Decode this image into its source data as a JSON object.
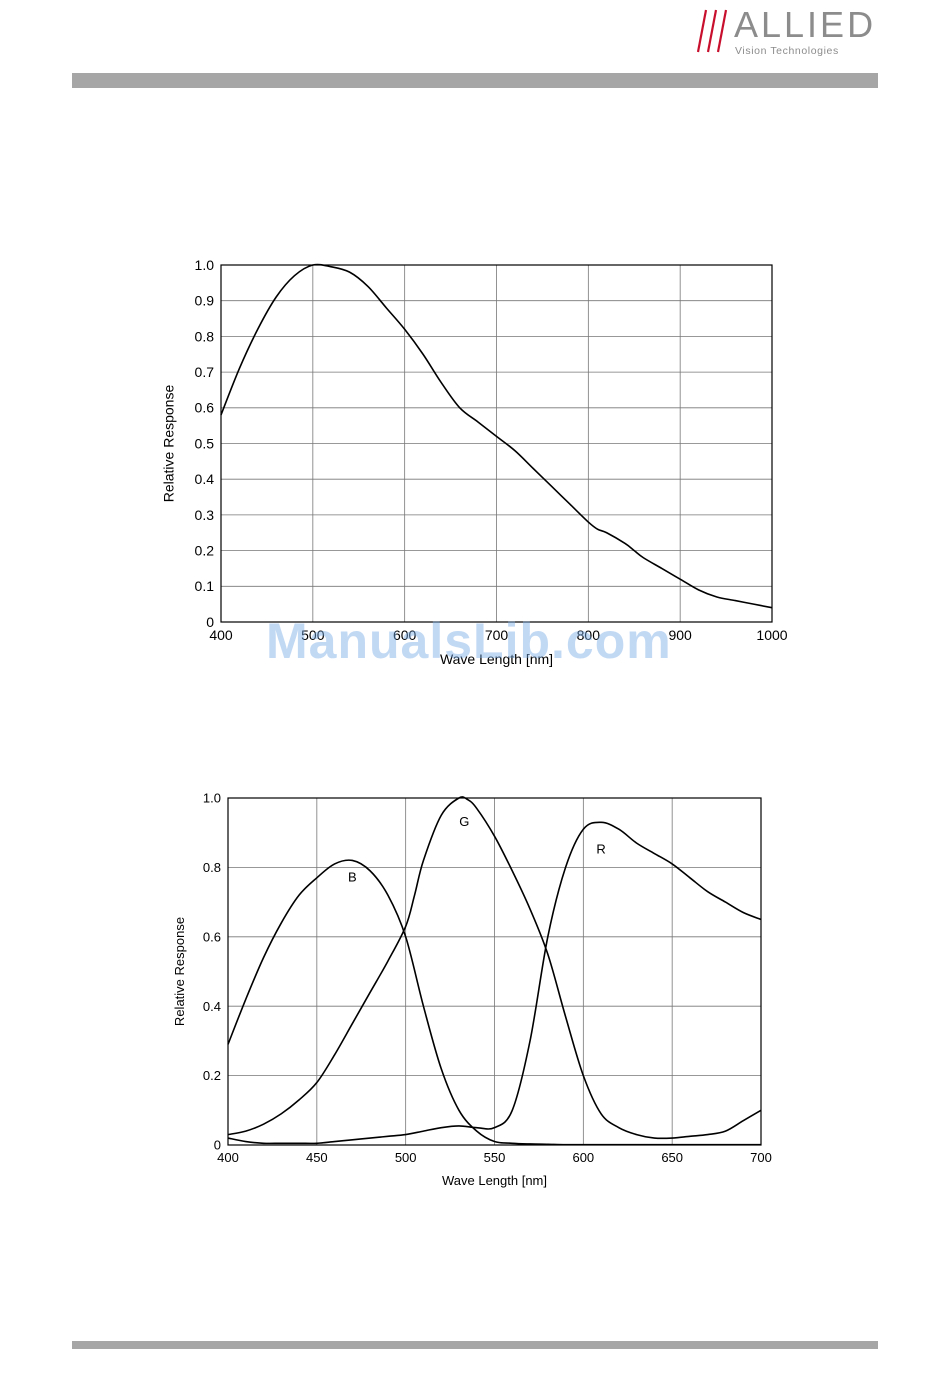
{
  "header": {
    "logo_name": "ALLIED",
    "logo_tagline": "Vision Technologies"
  },
  "colors": {
    "logo_red": "#c8102e",
    "logo_gray": "#8c8c8c",
    "bar_gray": "#a6a6a6",
    "watermark": "#78aae6"
  },
  "watermark": "ManualsLib.com",
  "chart_data": [
    {
      "type": "line",
      "title": "",
      "xlabel": "Wave Length [nm]",
      "ylabel": "Relative Response",
      "xlim": [
        400,
        1000
      ],
      "ylim": [
        0,
        1.0
      ],
      "x_ticks": [
        "400",
        "500",
        "600",
        "700",
        "800",
        "900",
        "1000"
      ],
      "y_ticks": [
        "0",
        "0.1",
        "0.2",
        "0.3",
        "0.4",
        "0.5",
        "0.6",
        "0.7",
        "0.8",
        "0.9",
        "1.0"
      ],
      "grid": true,
      "series": [
        {
          "x": [
            400,
            420,
            440,
            460,
            480,
            500,
            520,
            540,
            560,
            580,
            600,
            620,
            640,
            660,
            680,
            700,
            720,
            740,
            760,
            780,
            800,
            810,
            820,
            840,
            850,
            860,
            880,
            900,
            920,
            940,
            960,
            980,
            1000
          ],
          "y": [
            0.58,
            0.71,
            0.82,
            0.91,
            0.97,
            1.0,
            0.995,
            0.98,
            0.94,
            0.88,
            0.82,
            0.75,
            0.67,
            0.6,
            0.56,
            0.52,
            0.48,
            0.43,
            0.38,
            0.33,
            0.28,
            0.26,
            0.25,
            0.22,
            0.2,
            0.18,
            0.15,
            0.12,
            0.09,
            0.07,
            0.06,
            0.05,
            0.04
          ]
        }
      ]
    },
    {
      "type": "line",
      "title": "",
      "xlabel": "Wave Length [nm]",
      "ylabel": "Relative Response",
      "xlim": [
        400,
        700
      ],
      "ylim": [
        0,
        1.0
      ],
      "x_ticks": [
        "400",
        "450",
        "500",
        "550",
        "600",
        "650",
        "700"
      ],
      "y_ticks": [
        "0",
        "0.2",
        "0.4",
        "0.6",
        "0.8",
        "1.0"
      ],
      "grid": true,
      "series": [
        {
          "name": "B",
          "label_at": [
            470,
            0.76
          ],
          "x": [
            400,
            410,
            420,
            430,
            440,
            450,
            460,
            470,
            480,
            490,
            500,
            510,
            520,
            530,
            540,
            550,
            560,
            570,
            580,
            590,
            600,
            610,
            620,
            630,
            640,
            650,
            660,
            670,
            680,
            690,
            700
          ],
          "y": [
            0.29,
            0.42,
            0.54,
            0.64,
            0.72,
            0.77,
            0.81,
            0.82,
            0.79,
            0.72,
            0.6,
            0.4,
            0.22,
            0.1,
            0.04,
            0.01,
            0.005,
            0.003,
            0.002,
            0.001,
            0.001,
            0.001,
            0.001,
            0.001,
            0.001,
            0.001,
            0.001,
            0.001,
            0.001,
            0.001,
            0.001
          ]
        },
        {
          "name": "G",
          "label_at": [
            533,
            0.92
          ],
          "x": [
            400,
            410,
            420,
            430,
            440,
            450,
            460,
            470,
            480,
            490,
            500,
            505,
            510,
            520,
            530,
            535,
            540,
            550,
            560,
            570,
            580,
            590,
            600,
            610,
            620,
            630,
            640,
            650,
            660,
            670,
            680,
            690,
            700
          ],
          "y": [
            0.03,
            0.04,
            0.06,
            0.09,
            0.13,
            0.18,
            0.26,
            0.35,
            0.44,
            0.53,
            0.63,
            0.72,
            0.82,
            0.95,
            1.0,
            0.995,
            0.97,
            0.89,
            0.79,
            0.68,
            0.55,
            0.37,
            0.2,
            0.09,
            0.05,
            0.03,
            0.02,
            0.02,
            0.025,
            0.03,
            0.04,
            0.07,
            0.1
          ]
        },
        {
          "name": "R",
          "label_at": [
            610,
            0.84
          ],
          "x": [
            400,
            410,
            420,
            430,
            440,
            450,
            460,
            470,
            480,
            490,
            500,
            510,
            520,
            530,
            540,
            550,
            560,
            570,
            580,
            590,
            600,
            610,
            620,
            630,
            640,
            650,
            660,
            670,
            680,
            690,
            700
          ],
          "y": [
            0.02,
            0.01,
            0.005,
            0.005,
            0.005,
            0.005,
            0.01,
            0.015,
            0.02,
            0.025,
            0.03,
            0.04,
            0.05,
            0.055,
            0.05,
            0.05,
            0.1,
            0.3,
            0.6,
            0.8,
            0.91,
            0.93,
            0.91,
            0.87,
            0.84,
            0.81,
            0.77,
            0.73,
            0.7,
            0.67,
            0.65
          ]
        }
      ]
    }
  ]
}
